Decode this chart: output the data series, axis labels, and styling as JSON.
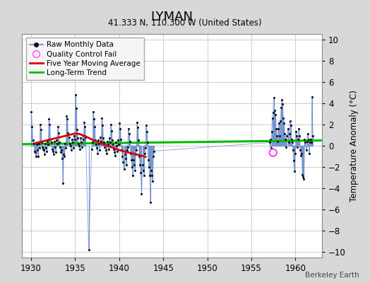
{
  "title": "LYMAN",
  "subtitle": "41.333 N, 110.300 W (United States)",
  "ylabel": "Temperature Anomaly (°C)",
  "watermark": "Berkeley Earth",
  "xlim": [
    1929.0,
    1963.0
  ],
  "ylim": [
    -10.5,
    10.5
  ],
  "yticks": [
    -10,
    -8,
    -6,
    -4,
    -2,
    0,
    2,
    4,
    6,
    8,
    10
  ],
  "xticks": [
    1930,
    1935,
    1940,
    1945,
    1950,
    1955,
    1960
  ],
  "fig_color": "#d8d8d8",
  "plot_bg_color": "#ffffff",
  "grid_color": "#cccccc",
  "raw_line_color": "#6688cc",
  "raw_dot_color": "#111111",
  "ma_color": "#dd0000",
  "trend_color": "#00bb00",
  "qc_color": "#ff44ff",
  "raw_data": [
    [
      1930.042,
      3.2
    ],
    [
      1930.125,
      1.8
    ],
    [
      1930.208,
      0.5
    ],
    [
      1930.292,
      0.2
    ],
    [
      1930.375,
      -0.5
    ],
    [
      1930.458,
      -0.6
    ],
    [
      1930.542,
      -1.0
    ],
    [
      1930.625,
      0.1
    ],
    [
      1930.708,
      -0.4
    ],
    [
      1930.792,
      -1.0
    ],
    [
      1930.875,
      0.2
    ],
    [
      1930.958,
      -0.2
    ],
    [
      1931.042,
      2.0
    ],
    [
      1931.125,
      1.5
    ],
    [
      1931.208,
      0.3
    ],
    [
      1931.292,
      -0.1
    ],
    [
      1931.375,
      -0.3
    ],
    [
      1931.458,
      -0.4
    ],
    [
      1931.542,
      -0.8
    ],
    [
      1931.625,
      0.2
    ],
    [
      1931.708,
      -0.2
    ],
    [
      1931.792,
      -0.5
    ],
    [
      1931.875,
      0.4
    ],
    [
      1931.958,
      0.1
    ],
    [
      1932.042,
      2.5
    ],
    [
      1932.125,
      2.0
    ],
    [
      1932.208,
      0.6
    ],
    [
      1932.292,
      0.3
    ],
    [
      1932.375,
      -0.3
    ],
    [
      1932.458,
      -0.5
    ],
    [
      1932.542,
      -0.8
    ],
    [
      1932.625,
      0.4
    ],
    [
      1932.708,
      -0.1
    ],
    [
      1932.792,
      -0.6
    ],
    [
      1932.875,
      0.5
    ],
    [
      1932.958,
      0.2
    ],
    [
      1933.042,
      1.8
    ],
    [
      1933.125,
      1.2
    ],
    [
      1933.208,
      0.3
    ],
    [
      1933.292,
      -0.1
    ],
    [
      1933.375,
      -0.6
    ],
    [
      1933.458,
      -0.4
    ],
    [
      1933.542,
      -1.2
    ],
    [
      1933.625,
      -3.5
    ],
    [
      1933.708,
      -0.8
    ],
    [
      1933.792,
      -1.0
    ],
    [
      1933.875,
      0.2
    ],
    [
      1933.958,
      -0.2
    ],
    [
      1934.042,
      2.8
    ],
    [
      1934.125,
      2.5
    ],
    [
      1934.208,
      1.2
    ],
    [
      1934.292,
      0.8
    ],
    [
      1934.375,
      0.2
    ],
    [
      1934.458,
      0.0
    ],
    [
      1934.542,
      -0.4
    ],
    [
      1934.625,
      0.6
    ],
    [
      1934.708,
      0.3
    ],
    [
      1934.792,
      -0.2
    ],
    [
      1934.875,
      0.9
    ],
    [
      1934.958,
      0.6
    ],
    [
      1935.042,
      4.8
    ],
    [
      1935.125,
      3.5
    ],
    [
      1935.208,
      1.5
    ],
    [
      1935.292,
      0.7
    ],
    [
      1935.375,
      0.2
    ],
    [
      1935.458,
      0.0
    ],
    [
      1935.542,
      -0.3
    ],
    [
      1935.625,
      0.7
    ],
    [
      1935.708,
      0.3
    ],
    [
      1935.792,
      -0.1
    ],
    [
      1935.875,
      1.0
    ],
    [
      1935.958,
      0.6
    ],
    [
      1936.042,
      2.2
    ],
    [
      1936.125,
      1.8
    ],
    [
      1936.208,
      0.8
    ],
    [
      1936.542,
      -9.8
    ],
    [
      1936.875,
      -0.3
    ],
    [
      1936.958,
      0.3
    ],
    [
      1937.042,
      3.2
    ],
    [
      1937.125,
      2.5
    ],
    [
      1937.208,
      1.8
    ],
    [
      1937.292,
      0.5
    ],
    [
      1937.375,
      0.1
    ],
    [
      1937.458,
      -0.2
    ],
    [
      1937.542,
      -0.7
    ],
    [
      1937.625,
      0.5
    ],
    [
      1937.708,
      0.2
    ],
    [
      1937.792,
      -0.4
    ],
    [
      1937.875,
      0.8
    ],
    [
      1937.958,
      0.4
    ],
    [
      1938.042,
      2.6
    ],
    [
      1938.125,
      1.9
    ],
    [
      1938.208,
      0.7
    ],
    [
      1938.292,
      0.3
    ],
    [
      1938.375,
      -0.1
    ],
    [
      1938.458,
      -0.4
    ],
    [
      1938.542,
      -0.7
    ],
    [
      1938.625,
      0.4
    ],
    [
      1938.708,
      0.1
    ],
    [
      1938.792,
      -0.3
    ],
    [
      1938.875,
      0.7
    ],
    [
      1938.958,
      0.3
    ],
    [
      1939.042,
      2.0
    ],
    [
      1939.125,
      1.4
    ],
    [
      1939.208,
      0.5
    ],
    [
      1939.292,
      0.1
    ],
    [
      1939.375,
      -0.3
    ],
    [
      1939.458,
      -0.6
    ],
    [
      1939.542,
      -0.9
    ],
    [
      1939.625,
      0.3
    ],
    [
      1939.708,
      0.0
    ],
    [
      1939.792,
      -0.5
    ],
    [
      1939.875,
      0.5
    ],
    [
      1939.958,
      0.1
    ],
    [
      1940.042,
      2.1
    ],
    [
      1940.125,
      1.6
    ],
    [
      1940.208,
      0.6
    ],
    [
      1940.292,
      -0.4
    ],
    [
      1940.375,
      -1.0
    ],
    [
      1940.458,
      -1.5
    ],
    [
      1940.542,
      -2.2
    ],
    [
      1940.625,
      -0.8
    ],
    [
      1940.708,
      -1.2
    ],
    [
      1940.792,
      -1.8
    ],
    [
      1940.875,
      -0.4
    ],
    [
      1940.958,
      -0.1
    ],
    [
      1941.042,
      1.6
    ],
    [
      1941.125,
      1.1
    ],
    [
      1941.208,
      0.4
    ],
    [
      1941.292,
      -0.7
    ],
    [
      1941.375,
      -1.3
    ],
    [
      1941.458,
      -2.0
    ],
    [
      1941.542,
      -2.8
    ],
    [
      1941.625,
      -1.3
    ],
    [
      1941.708,
      -1.8
    ],
    [
      1941.792,
      -2.3
    ],
    [
      1941.875,
      -0.8
    ],
    [
      1941.958,
      -0.4
    ],
    [
      1942.042,
      2.2
    ],
    [
      1942.125,
      1.7
    ],
    [
      1942.208,
      0.5
    ],
    [
      1942.292,
      -1.0
    ],
    [
      1942.375,
      -1.8
    ],
    [
      1942.458,
      -2.5
    ],
    [
      1942.542,
      -4.5
    ],
    [
      1942.625,
      -1.8
    ],
    [
      1942.708,
      -2.3
    ],
    [
      1942.792,
      -2.8
    ],
    [
      1942.875,
      -0.7
    ],
    [
      1942.958,
      -0.2
    ],
    [
      1943.042,
      1.9
    ],
    [
      1943.125,
      1.3
    ],
    [
      1943.208,
      0.3
    ],
    [
      1943.292,
      -1.3
    ],
    [
      1943.375,
      -2.0
    ],
    [
      1943.458,
      -2.8
    ],
    [
      1943.542,
      -5.3
    ],
    [
      1943.625,
      -2.3
    ],
    [
      1943.708,
      -2.8
    ],
    [
      1943.792,
      -3.3
    ],
    [
      1943.875,
      -1.0
    ],
    [
      1943.958,
      -0.5
    ],
    [
      1957.042,
      0.3
    ],
    [
      1957.125,
      0.6
    ],
    [
      1957.208,
      -0.2
    ],
    [
      1957.292,
      1.3
    ],
    [
      1957.375,
      2.6
    ],
    [
      1957.458,
      3.1
    ],
    [
      1957.542,
      4.5
    ],
    [
      1957.625,
      3.3
    ],
    [
      1957.708,
      2.9
    ],
    [
      1957.792,
      1.6
    ],
    [
      1957.875,
      0.9
    ],
    [
      1957.958,
      0.4
    ],
    [
      1958.042,
      1.6
    ],
    [
      1958.125,
      2.1
    ],
    [
      1958.208,
      0.9
    ],
    [
      1958.292,
      2.3
    ],
    [
      1958.375,
      3.6
    ],
    [
      1958.458,
      4.3
    ],
    [
      1958.542,
      3.9
    ],
    [
      1958.625,
      2.6
    ],
    [
      1958.708,
      2.1
    ],
    [
      1958.792,
      1.1
    ],
    [
      1958.875,
      0.6
    ],
    [
      1958.958,
      -0.1
    ],
    [
      1959.042,
      0.9
    ],
    [
      1959.125,
      1.6
    ],
    [
      1959.208,
      0.3
    ],
    [
      1959.292,
      1.1
    ],
    [
      1959.375,
      2.3
    ],
    [
      1959.458,
      1.9
    ],
    [
      1959.542,
      0.6
    ],
    [
      1959.625,
      0.3
    ],
    [
      1959.708,
      -0.4
    ],
    [
      1959.792,
      -1.4
    ],
    [
      1959.875,
      -2.4
    ],
    [
      1959.958,
      -0.7
    ],
    [
      1960.042,
      1.3
    ],
    [
      1960.125,
      0.9
    ],
    [
      1960.208,
      -0.1
    ],
    [
      1960.292,
      0.6
    ],
    [
      1960.375,
      1.6
    ],
    [
      1960.458,
      0.9
    ],
    [
      1960.542,
      -0.4
    ],
    [
      1960.625,
      -0.9
    ],
    [
      1960.708,
      -0.7
    ],
    [
      1960.792,
      -2.7
    ],
    [
      1960.875,
      -2.9
    ],
    [
      1960.958,
      -3.1
    ],
    [
      1961.042,
      0.6
    ],
    [
      1961.125,
      0.3
    ],
    [
      1961.208,
      -0.4
    ],
    [
      1961.292,
      0.4
    ],
    [
      1961.375,
      1.1
    ],
    [
      1961.458,
      0.6
    ],
    [
      1961.542,
      -0.7
    ],
    [
      1961.625,
      0.3
    ],
    [
      1961.708,
      0.6
    ],
    [
      1961.792,
      0.3
    ],
    [
      1961.875,
      4.6
    ],
    [
      1961.958,
      0.9
    ]
  ],
  "qc_fail": [
    [
      1957.458,
      -0.65
    ]
  ],
  "ma_data": [
    [
      1930.5,
      0.25
    ],
    [
      1931.0,
      0.35
    ],
    [
      1931.5,
      0.45
    ],
    [
      1932.0,
      0.55
    ],
    [
      1932.5,
      0.65
    ],
    [
      1933.0,
      0.75
    ],
    [
      1933.5,
      0.85
    ],
    [
      1934.0,
      0.95
    ],
    [
      1934.5,
      1.05
    ],
    [
      1935.0,
      1.15
    ],
    [
      1935.5,
      1.1
    ],
    [
      1936.0,
      0.95
    ],
    [
      1936.5,
      0.75
    ],
    [
      1937.0,
      0.55
    ],
    [
      1937.5,
      0.38
    ],
    [
      1938.0,
      0.2
    ],
    [
      1938.5,
      0.05
    ],
    [
      1939.0,
      -0.1
    ],
    [
      1939.5,
      -0.25
    ],
    [
      1940.0,
      -0.4
    ],
    [
      1940.5,
      -0.52
    ],
    [
      1941.0,
      -0.62
    ],
    [
      1941.5,
      -0.72
    ],
    [
      1942.0,
      -0.82
    ],
    [
      1942.5,
      -0.92
    ],
    [
      1943.0,
      -1.05
    ]
  ],
  "trend_x": [
    1929.0,
    1963.0
  ],
  "trend_y": [
    0.15,
    0.5
  ]
}
